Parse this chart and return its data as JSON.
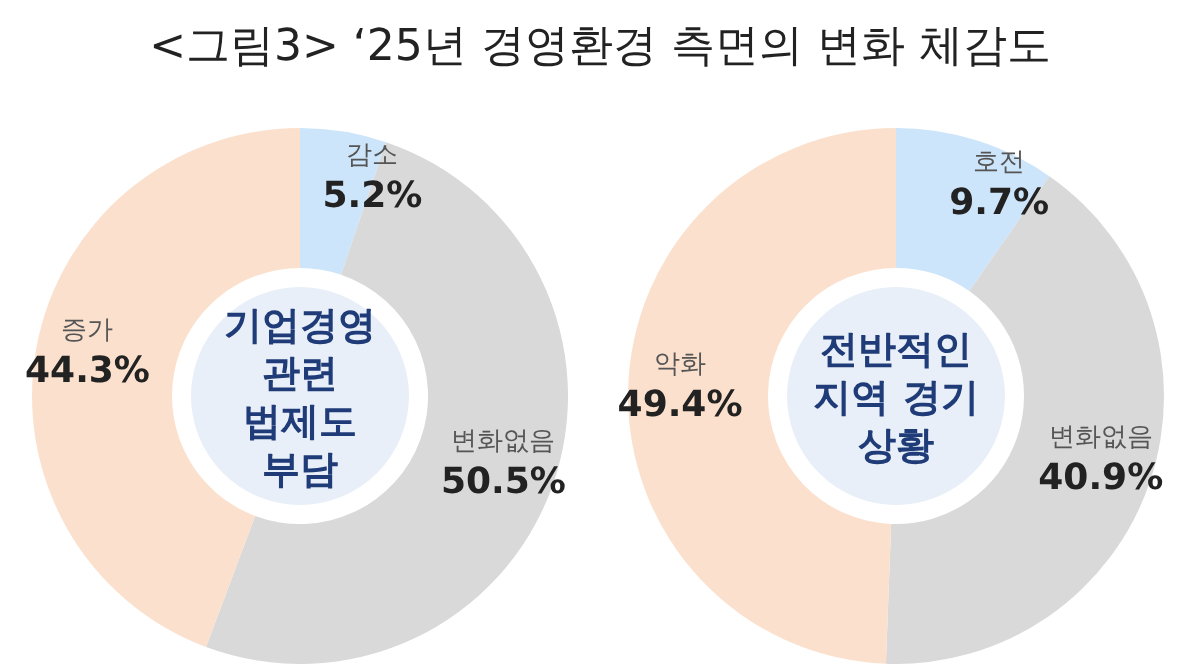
{
  "chart_data": [
    {
      "type": "donut",
      "title": "기업경영\n관련\n법제도\n부담",
      "annotations": [
        "<그림3> ‘25년 경영환경 측면의 변화 체감도"
      ],
      "categories": [
        "감소",
        "변화없음",
        "증가"
      ],
      "values": [
        5.2,
        50.5,
        44.3
      ],
      "value_labels": [
        "5.2%",
        "50.5%",
        "44.3%"
      ],
      "colors": [
        "#cde5fa",
        "#d9d9d9",
        "#fbe1cd"
      ]
    },
    {
      "type": "donut",
      "title": "전반적인\n지역 경기\n상황",
      "categories": [
        "호전",
        "변화없음",
        "악화"
      ],
      "values": [
        9.7,
        40.9,
        49.4
      ],
      "value_labels": [
        "9.7%",
        "40.9%",
        "49.4%"
      ],
      "colors": [
        "#cde5fa",
        "#d9d9d9",
        "#fbe1cd"
      ]
    }
  ]
}
